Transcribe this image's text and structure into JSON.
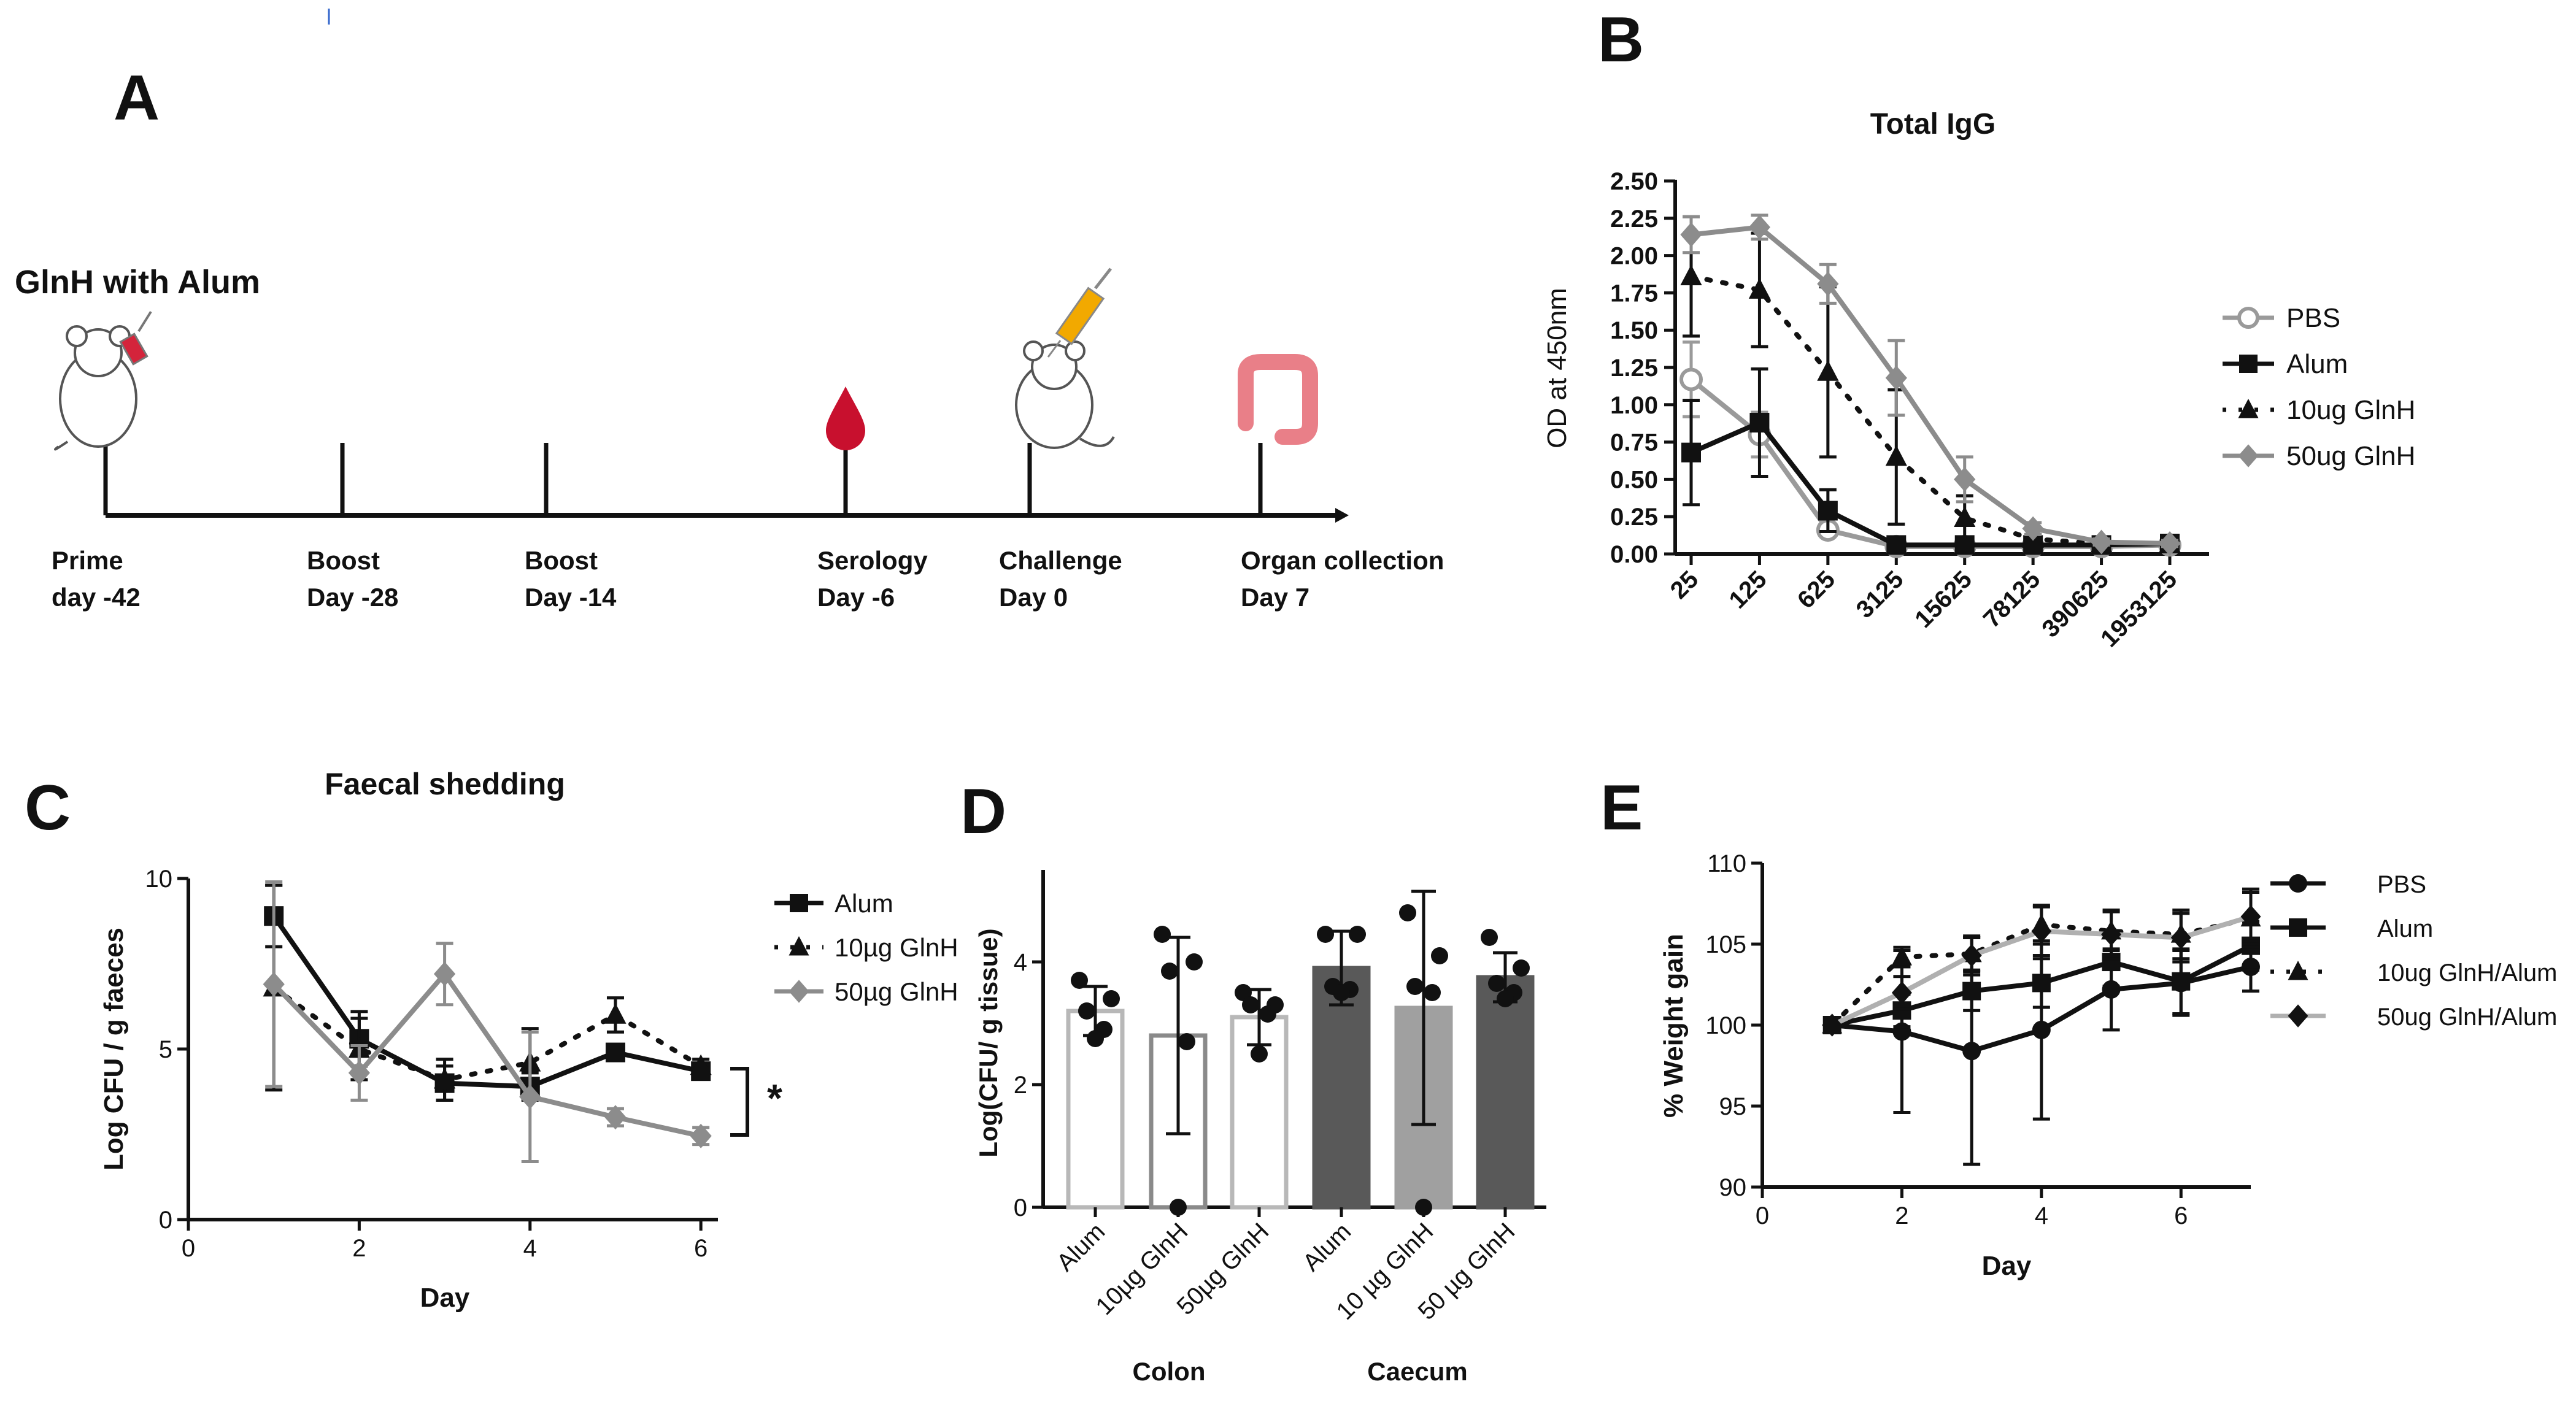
{
  "panels": {
    "A": {
      "letter": "A",
      "title": "GlnH with Alum",
      "events": [
        {
          "line1": "Prime",
          "line2": "day -42",
          "icon": "mouse-syringe-icon"
        },
        {
          "line1": "Boost",
          "line2": "Day -28",
          "icon": ""
        },
        {
          "line1": "Boost",
          "line2": "Day -14",
          "icon": ""
        },
        {
          "line1": "Serology",
          "line2": "Day -6",
          "icon": "blood-drop-icon"
        },
        {
          "line1": "Challenge",
          "line2": "Day 0",
          "icon": "mouse-injection-icon"
        },
        {
          "line1": "Organ collection",
          "line2": "Day 7",
          "icon": "intestine-icon"
        }
      ]
    },
    "B": {
      "letter": "B"
    },
    "C": {
      "letter": "C"
    },
    "D": {
      "letter": "D"
    },
    "E": {
      "letter": "E"
    }
  },
  "colors": {
    "black": "#111111",
    "gray": "#8c8c8c",
    "lightgray": "#b5b5b5",
    "darkbar": "#595959",
    "midbar": "#a0a0a0"
  },
  "chart_data": [
    {
      "id": "B",
      "type": "line",
      "title": "Total IgG",
      "xlabel": "",
      "ylabel": "OD at 450nm",
      "categories": [
        "25",
        "125",
        "625",
        "3125",
        "15625",
        "78125",
        "390625",
        "1953125"
      ],
      "ylim": [
        0,
        2.5
      ],
      "yticks": [
        "0.00",
        "0.25",
        "0.50",
        "0.75",
        "1.00",
        "1.25",
        "1.50",
        "1.75",
        "2.00",
        "2.25",
        "2.50"
      ],
      "legend_position": "right",
      "series": [
        {
          "name": "PBS",
          "marker": "open-circle",
          "color": "#9a9a9a",
          "dash": "solid",
          "values": [
            1.17,
            0.8,
            0.16,
            0.05,
            0.05,
            0.05,
            0.05,
            0.06
          ],
          "errors": [
            0.25,
            0.15,
            0.04,
            0.01,
            0.01,
            0.01,
            0.01,
            0.01
          ]
        },
        {
          "name": "Alum",
          "marker": "square",
          "color": "#111111",
          "dash": "solid",
          "values": [
            0.68,
            0.88,
            0.29,
            0.06,
            0.06,
            0.06,
            0.06,
            0.07
          ],
          "errors": [
            0.35,
            0.36,
            0.14,
            0.02,
            0.02,
            0.02,
            0.02,
            0.02
          ]
        },
        {
          "name": "10ug GlnH",
          "marker": "triangle",
          "color": "#111111",
          "dash": "dotted",
          "values": [
            1.86,
            1.77,
            1.22,
            0.65,
            0.24,
            0.1,
            0.07,
            0.07
          ],
          "errors": [
            0.4,
            0.38,
            0.57,
            0.45,
            0.15,
            0.03,
            0.02,
            0.02
          ]
        },
        {
          "name": "50ug GlnH",
          "marker": "diamond",
          "color": "#8c8c8c",
          "dash": "solid",
          "values": [
            2.14,
            2.19,
            1.81,
            1.18,
            0.5,
            0.17,
            0.08,
            0.07
          ],
          "errors": [
            0.12,
            0.08,
            0.13,
            0.25,
            0.15,
            0.04,
            0.02,
            0.02
          ]
        }
      ]
    },
    {
      "id": "C",
      "type": "line",
      "title": "Faecal shedding",
      "xlabel": "Day",
      "ylabel": "Log CFU / g faeces",
      "xlim": [
        0,
        6.2
      ],
      "ylim": [
        0,
        10
      ],
      "xticks": [
        0,
        2,
        4,
        6
      ],
      "yticks": [
        0,
        5,
        10
      ],
      "legend_position": "right",
      "significance": "*",
      "series": [
        {
          "name": "Alum",
          "marker": "square",
          "color": "#111111",
          "dash": "solid",
          "x": [
            1,
            2,
            3,
            4,
            5,
            6
          ],
          "values": [
            8.9,
            5.3,
            4.0,
            3.9,
            4.9,
            4.35
          ],
          "errors": [
            0.9,
            0.8,
            0.5,
            0.4,
            0.2,
            0.15
          ]
        },
        {
          "name": "10µg GlnH",
          "marker": "triangle",
          "color": "#111111",
          "dash": "dotted",
          "x": [
            1,
            2,
            3,
            4,
            5,
            6
          ],
          "values": [
            6.8,
            5.0,
            4.1,
            4.6,
            6.0,
            4.5
          ],
          "errors": [
            3.0,
            0.9,
            0.6,
            1.0,
            0.5,
            0.2
          ]
        },
        {
          "name": "50µg GlnH",
          "marker": "diamond",
          "color": "#8c8c8c",
          "dash": "solid",
          "x": [
            1,
            2,
            3,
            4,
            5,
            6
          ],
          "values": [
            6.9,
            4.3,
            7.2,
            3.6,
            3.0,
            2.45
          ],
          "errors": [
            3.0,
            0.8,
            0.9,
            1.9,
            0.25,
            0.25
          ]
        }
      ]
    },
    {
      "id": "D",
      "type": "bar",
      "title": "",
      "xlabel": "",
      "ylabel": "Log(CFU/ g tissue)",
      "ylim": [
        0,
        5.5
      ],
      "yticks": [
        0,
        2,
        4
      ],
      "categories": [
        "Alum",
        "10µg GlnH",
        "50µg GlnH",
        "Alum",
        "10 µg GlnH",
        "50 µg GlnH"
      ],
      "groups": [
        "Colon",
        "Caecum"
      ],
      "values": [
        3.2,
        2.8,
        3.1,
        3.9,
        3.25,
        3.75
      ],
      "errors": [
        0.4,
        1.6,
        0.45,
        0.6,
        1.9,
        0.4
      ],
      "points": [
        [
          3.7,
          3.4,
          3.2,
          2.9,
          2.75
        ],
        [
          4.45,
          4.0,
          3.85,
          2.7,
          0.0
        ],
        [
          3.5,
          3.3,
          3.3,
          3.15,
          2.5
        ],
        [
          4.45,
          4.45,
          3.6,
          3.55,
          3.5
        ],
        [
          4.8,
          4.1,
          3.6,
          3.5,
          0.0
        ],
        [
          4.4,
          3.9,
          3.65,
          3.5,
          3.4
        ]
      ],
      "bar_styles": [
        "open-lightgray",
        "open-gray",
        "open-lightgray",
        "filled-dark",
        "filled-light",
        "filled-dark"
      ]
    },
    {
      "id": "E",
      "type": "line",
      "title": "",
      "xlabel": "Day",
      "ylabel": "% Weight gain",
      "xlim": [
        0,
        7
      ],
      "ylim": [
        90,
        110
      ],
      "xticks": [
        0,
        2,
        4,
        6
      ],
      "yticks": [
        90,
        95,
        100,
        105,
        110
      ],
      "legend_position": "right",
      "series": [
        {
          "name": "PBS",
          "marker": "circle",
          "color": "#111111",
          "dash": "solid",
          "x": [
            1,
            2,
            3,
            4,
            5,
            6,
            7
          ],
          "values": [
            100,
            99.6,
            98.4,
            99.7,
            102.2,
            102.6,
            103.6
          ],
          "errors": [
            0,
            5.0,
            7.0,
            5.5,
            2.5,
            2.0,
            1.5
          ]
        },
        {
          "name": "Alum",
          "marker": "square",
          "color": "#111111",
          "dash": "solid",
          "x": [
            1,
            2,
            3,
            4,
            5,
            6,
            7
          ],
          "values": [
            100,
            100.9,
            102.1,
            102.6,
            103.9,
            102.7,
            104.9
          ],
          "errors": [
            0,
            1.0,
            1.2,
            1.5,
            1.5,
            2.0,
            1.5
          ]
        },
        {
          "name": "10ug GlnH/Alum",
          "marker": "triangle",
          "color": "#111111",
          "dash": "dotted",
          "x": [
            1,
            2,
            3,
            4,
            5,
            6,
            7
          ],
          "values": [
            100,
            104.2,
            104.4,
            106.2,
            105.8,
            105.6,
            106.6
          ],
          "errors": [
            0,
            0.6,
            1.0,
            1.2,
            1.2,
            1.5,
            1.8
          ]
        },
        {
          "name": "50ug GlnH/Alum",
          "marker": "diamond",
          "color": "#b0b0b0",
          "dash": "solid",
          "x": [
            1,
            2,
            3,
            4,
            5,
            6,
            7
          ],
          "values": [
            100,
            102.0,
            104.3,
            105.8,
            105.6,
            105.4,
            106.7
          ],
          "errors": [
            0,
            1.0,
            1.2,
            1.5,
            1.5,
            1.5,
            1.5
          ]
        }
      ]
    }
  ]
}
